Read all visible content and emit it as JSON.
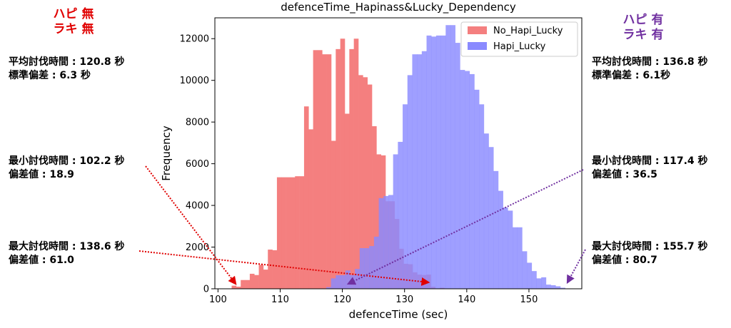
{
  "left_panel": {
    "header_line1": "ハピ 無",
    "header_line2": "ラキ 無",
    "avg_label": "平均討伐時間 : 120.8 秒",
    "std_label": "標準偏差 : 6.3 秒",
    "min_label": "最小討伐時間 : 102.2 秒",
    "min_dev": "偏差値 : 18.9",
    "max_label": "最大討伐時間 : 138.6 秒",
    "max_dev": "偏差値 : 61.0",
    "color": "#e00000"
  },
  "right_panel": {
    "header_line1": "ハピ 有",
    "header_line2": "ラキ 有",
    "avg_label": "平均討伐時間 : 136.8 秒",
    "std_label": "標準偏差 : 6.1秒",
    "min_label": "最小討伐時間 : 117.4 秒",
    "min_dev": "偏差値 : 36.5",
    "max_label": "最大討伐時間 : 155.7 秒",
    "max_dev": "偏差値 : 80.7",
    "color": "#7030a0"
  },
  "chart_data": {
    "type": "bar",
    "subtype": "histogram",
    "title": "defenceTime_Hapinass&Lucky_Dependency",
    "xlabel": "defenceTime (sec)",
    "ylabel": "Frequency",
    "xlim": [
      99.5,
      158.5
    ],
    "ylim": [
      0,
      13000
    ],
    "xticks": [
      100,
      110,
      120,
      130,
      140,
      150
    ],
    "yticks": [
      0,
      2000,
      4000,
      6000,
      8000,
      10000,
      12000
    ],
    "grid": false,
    "legend_position": "top-right",
    "series": [
      {
        "name": "No_Hapi_Lucky",
        "color": "#f47f7f",
        "bin_start": 102.2,
        "bin_width": 0.7276,
        "values": [
          150,
          100,
          420,
          420,
          720,
          660,
          1150,
          920,
          1880,
          1850,
          5350,
          5350,
          5350,
          5350,
          5400,
          5400,
          8750,
          7650,
          11450,
          11450,
          11250,
          11250,
          7100,
          11500,
          12000,
          8400,
          11500,
          12000,
          10250,
          10150,
          9800,
          7800,
          6450,
          6400,
          4200,
          4200,
          3350,
          1920,
          1200,
          1180,
          790,
          680,
          660,
          680,
          100,
          0,
          50,
          0,
          0,
          0
        ]
      },
      {
        "name": "Hapi_Lucky",
        "color": "#8a8aff",
        "bin_start": 117.4,
        "bin_width": 0.7684,
        "values": [
          80,
          500,
          650,
          650,
          880,
          660,
          950,
          1950,
          1950,
          2050,
          2500,
          4350,
          4450,
          4500,
          6450,
          7050,
          8850,
          10250,
          11250,
          11250,
          11400,
          12150,
          12100,
          12150,
          12150,
          12650,
          12650,
          11800,
          10500,
          10450,
          10300,
          9550,
          8850,
          7450,
          6800,
          5650,
          4700,
          3900,
          3750,
          2950,
          2950,
          1800,
          1250,
          850,
          500,
          550,
          200,
          170,
          120,
          50
        ]
      }
    ]
  }
}
